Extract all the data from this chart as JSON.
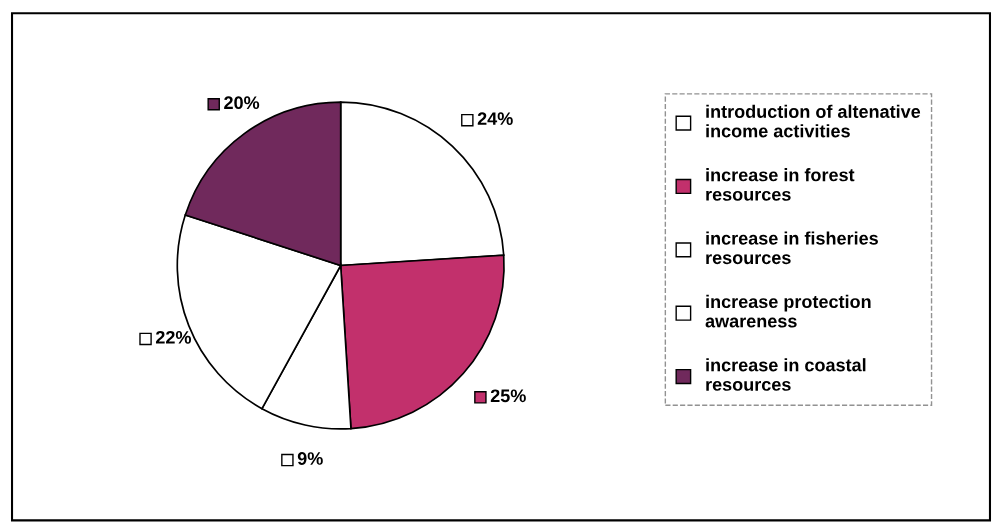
{
  "chart_data": {
    "type": "pie",
    "categories": [
      "introduction of altenative income activities",
      "increase in forest resources",
      " increase in fisheries resources",
      "increase protection awareness",
      " increase in coastal resources"
    ],
    "values": [
      24,
      25,
      9,
      22,
      20
    ],
    "value_labels": [
      "24%",
      "25%",
      "9%",
      "22%",
      "20%"
    ],
    "colors": [
      "#ffffff",
      "#c2306c",
      "#ffffff",
      "#ffffff",
      "#70295c"
    ],
    "legend": "right"
  }
}
